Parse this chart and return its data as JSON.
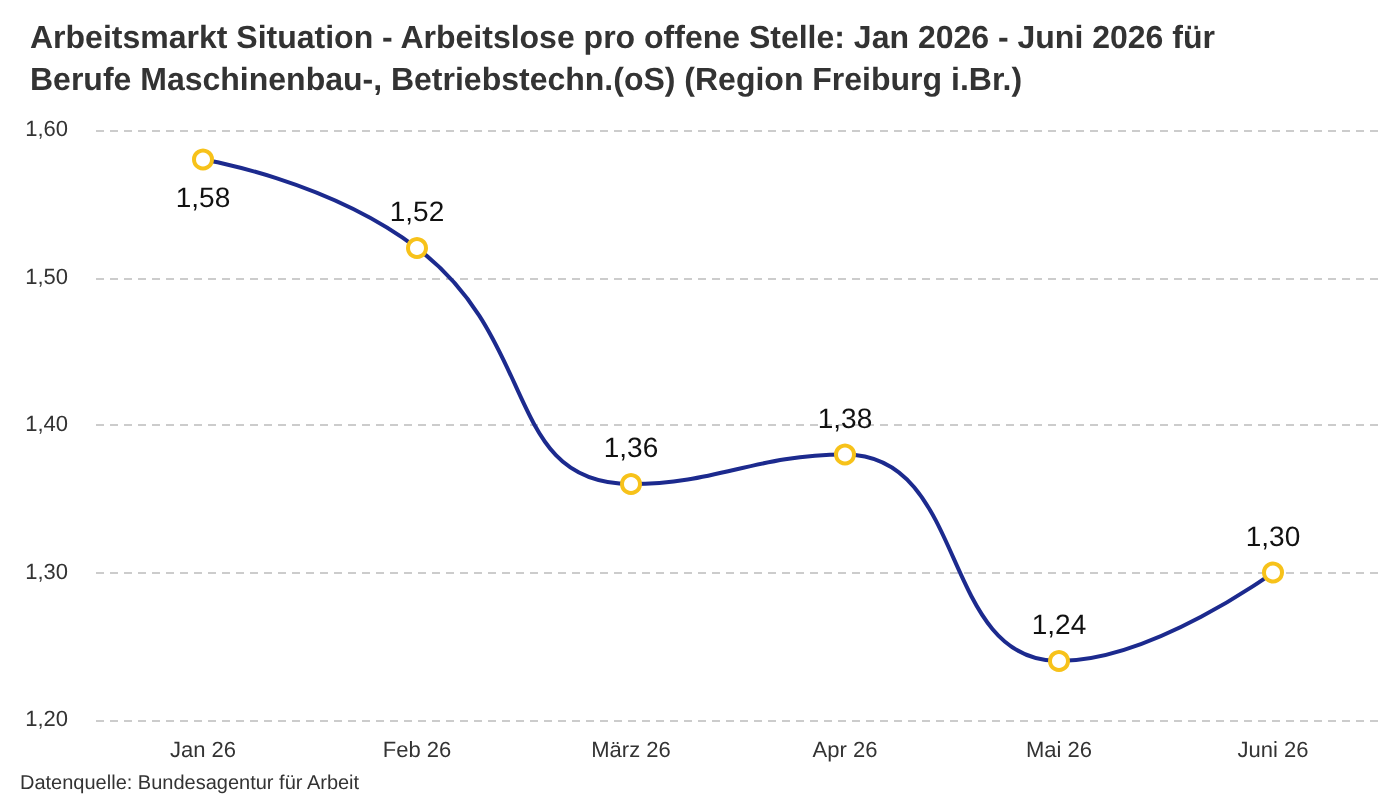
{
  "chart_data": {
    "type": "line",
    "title": "Arbeitsmarkt Situation - Arbeitslose pro offene Stelle: Jan 2026 - Juni 2026 für Berufe Maschinenbau-, Betriebstechn.(oS) (Region Freiburg i.Br.)",
    "categories": [
      "Jan 26",
      "Feb 26",
      "März 26",
      "Apr 26",
      "Mai 26",
      "Juni 26"
    ],
    "series": [
      {
        "color": "#1c2a8e",
        "values": [
          1.58,
          1.52,
          1.36,
          1.38,
          1.24,
          1.3
        ],
        "value_labels": [
          "1,58",
          "1,52",
          "1,36",
          "1,38",
          "1,24",
          "1,30"
        ]
      }
    ],
    "ylim": [
      1.2,
      1.6
    ],
    "yticks": [
      {
        "value": 1.2,
        "label": "1,20"
      },
      {
        "value": 1.3,
        "label": "1,30"
      },
      {
        "value": 1.4,
        "label": "1,40"
      },
      {
        "value": 1.5,
        "label": "1,50"
      },
      {
        "value": 1.6,
        "label": "1,60"
      }
    ],
    "grid": "y",
    "marker": "circle",
    "line_style": "solid",
    "annotations": [
      "Datenquelle: Bundesagentur für Arbeit"
    ]
  }
}
